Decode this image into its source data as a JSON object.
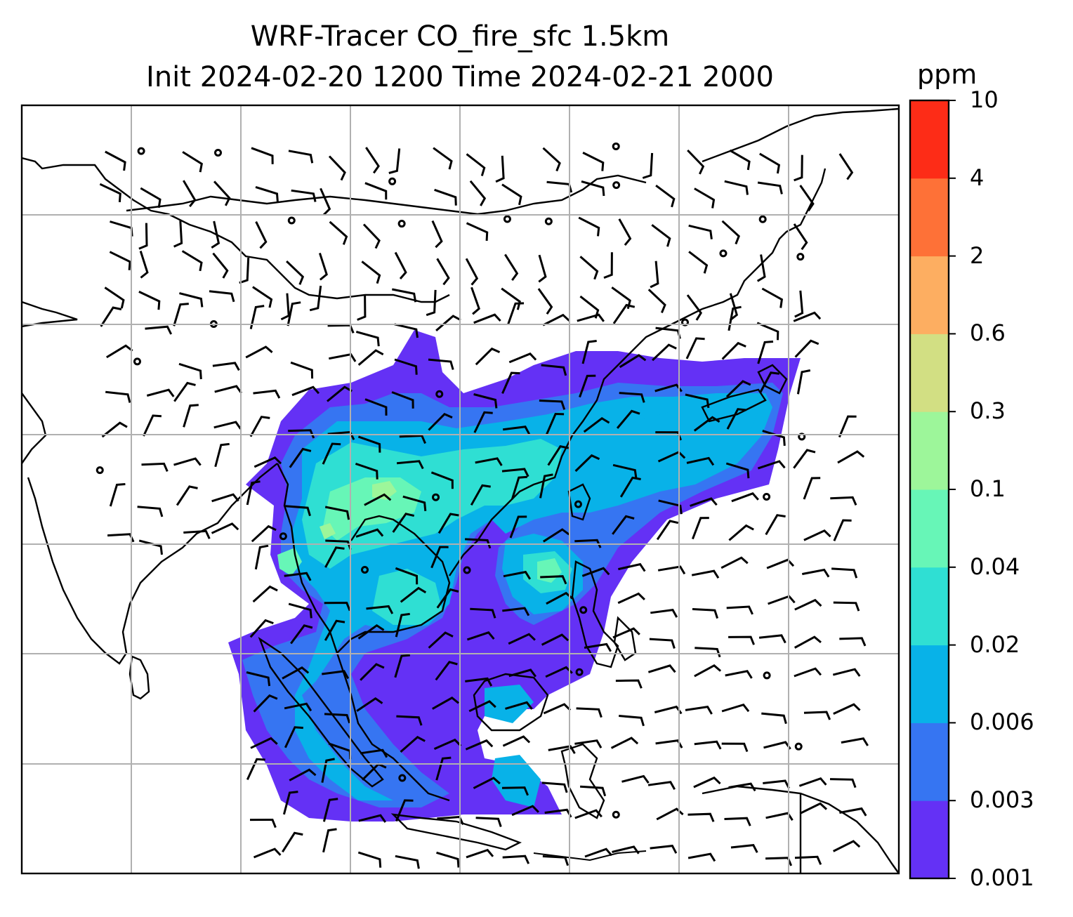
{
  "title": {
    "line1": "WRF-Tracer CO_fire_sfc 1.5km",
    "line2": "Init 2024-02-20 1200 Time 2024-02-21 2000"
  },
  "colorbar": {
    "unit": "ppm",
    "levels": [
      "0.001",
      "0.003",
      "0.006",
      "0.02",
      "0.04",
      "0.1",
      "0.3",
      "0.6",
      "2",
      "4",
      "10"
    ],
    "colors": [
      "#6431f5",
      "#3675f2",
      "#08b2e8",
      "#2fdfd3",
      "#67f6b7",
      "#9df69a",
      "#d2df83",
      "#fdae61",
      "#fe7137",
      "#fd2c17"
    ]
  },
  "map": {
    "background": "#ffffff",
    "coastline_color": "#000000",
    "gridline_color": "#b0b0b0",
    "barb_color": "#000000",
    "tracer_field": "CO_fire_sfc"
  }
}
